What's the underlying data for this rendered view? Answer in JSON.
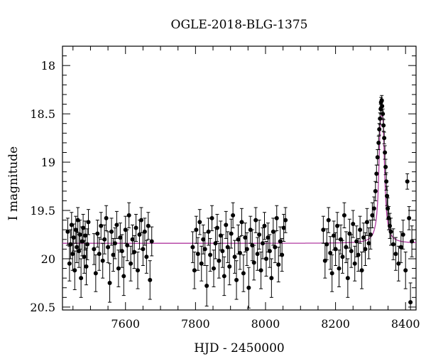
{
  "chart_data": {
    "type": "scatter",
    "title": "OGLE-2018-BLG-1375",
    "xlabel": "HJD - 2450000",
    "ylabel": "I magnitude",
    "xlim": [
      7420,
      8430
    ],
    "ylim": [
      20.53,
      17.8
    ],
    "y_inverted": true,
    "grid": false,
    "xticks": [
      {
        "value": 7600,
        "label": "7600"
      },
      {
        "value": 7800,
        "label": "7800"
      },
      {
        "value": 8000,
        "label": "8000"
      },
      {
        "value": 8200,
        "label": "8200"
      },
      {
        "value": 8400,
        "label": "8400"
      }
    ],
    "yticks": [
      {
        "value": 18,
        "label": "18"
      },
      {
        "value": 18.5,
        "label": "18.5"
      },
      {
        "value": 19,
        "label": "19"
      },
      {
        "value": 19.5,
        "label": "19.5"
      },
      {
        "value": 20,
        "label": "20"
      },
      {
        "value": 20.5,
        "label": "20.5"
      }
    ],
    "series": [
      {
        "kind": "data",
        "color": "#000000",
        "points": [
          [
            7435,
            19.72,
            0.14
          ],
          [
            7440,
            20.05,
            0.18
          ],
          [
            7443,
            19.85,
            0.15
          ],
          [
            7446,
            19.65,
            0.13
          ],
          [
            7449,
            19.95,
            0.17
          ],
          [
            7452,
            19.78,
            0.14
          ],
          [
            7455,
            20.12,
            0.2
          ],
          [
            7458,
            19.7,
            0.14
          ],
          [
            7461,
            19.88,
            0.16
          ],
          [
            7464,
            19.6,
            0.13
          ],
          [
            7467,
            19.92,
            0.17
          ],
          [
            7470,
            19.75,
            0.15
          ],
          [
            7473,
            20.2,
            0.2
          ],
          [
            7476,
            19.82,
            0.15
          ],
          [
            7479,
            19.68,
            0.14
          ],
          [
            7482,
            19.98,
            0.17
          ],
          [
            7485,
            19.76,
            0.15
          ],
          [
            7488,
            20.08,
            0.19
          ],
          [
            7491,
            19.85,
            0.16
          ],
          [
            7494,
            19.62,
            0.13
          ],
          [
            7510,
            19.9,
            0.16
          ],
          [
            7515,
            20.15,
            0.19
          ],
          [
            7520,
            19.74,
            0.14
          ],
          [
            7525,
            19.95,
            0.17
          ],
          [
            7530,
            19.66,
            0.14
          ],
          [
            7535,
            20.02,
            0.18
          ],
          [
            7540,
            19.8,
            0.15
          ],
          [
            7545,
            19.58,
            0.13
          ],
          [
            7550,
            19.88,
            0.16
          ],
          [
            7555,
            20.25,
            0.2
          ],
          [
            7560,
            19.72,
            0.14
          ],
          [
            7565,
            19.96,
            0.17
          ],
          [
            7570,
            19.84,
            0.16
          ],
          [
            7575,
            19.65,
            0.14
          ],
          [
            7580,
            20.1,
            0.19
          ],
          [
            7585,
            19.78,
            0.15
          ],
          [
            7590,
            19.92,
            0.17
          ],
          [
            7595,
            20.18,
            0.2
          ],
          [
            7600,
            19.7,
            0.14
          ],
          [
            7605,
            19.86,
            0.16
          ],
          [
            7610,
            19.55,
            0.13
          ],
          [
            7615,
            20.05,
            0.18
          ],
          [
            7620,
            19.8,
            0.15
          ],
          [
            7625,
            19.93,
            0.17
          ],
          [
            7630,
            19.68,
            0.14
          ],
          [
            7635,
            20.12,
            0.19
          ],
          [
            7640,
            19.75,
            0.15
          ],
          [
            7645,
            19.6,
            0.13
          ],
          [
            7650,
            19.9,
            0.17
          ],
          [
            7655,
            19.72,
            0.14
          ],
          [
            7660,
            19.98,
            0.17
          ],
          [
            7665,
            19.66,
            0.14
          ],
          [
            7670,
            20.22,
            0.2
          ],
          [
            7675,
            19.82,
            0.15
          ],
          [
            7792,
            19.88,
            0.16
          ],
          [
            7797,
            20.12,
            0.19
          ],
          [
            7802,
            19.7,
            0.14
          ],
          [
            7807,
            19.95,
            0.17
          ],
          [
            7812,
            19.62,
            0.13
          ],
          [
            7817,
            20.05,
            0.18
          ],
          [
            7822,
            19.8,
            0.15
          ],
          [
            7827,
            19.9,
            0.17
          ],
          [
            7832,
            20.28,
            0.21
          ],
          [
            7837,
            19.72,
            0.14
          ],
          [
            7842,
            19.96,
            0.17
          ],
          [
            7847,
            19.58,
            0.13
          ],
          [
            7852,
            20.1,
            0.19
          ],
          [
            7857,
            19.84,
            0.16
          ],
          [
            7862,
            19.68,
            0.14
          ],
          [
            7867,
            20.02,
            0.18
          ],
          [
            7872,
            19.76,
            0.15
          ],
          [
            7877,
            19.92,
            0.17
          ],
          [
            7882,
            20.18,
            0.2
          ],
          [
            7887,
            19.65,
            0.14
          ],
          [
            7892,
            19.88,
            0.16
          ],
          [
            7897,
            20.08,
            0.19
          ],
          [
            7902,
            19.74,
            0.15
          ],
          [
            7907,
            19.55,
            0.13
          ],
          [
            7912,
            19.98,
            0.17
          ],
          [
            7917,
            20.22,
            0.2
          ],
          [
            7922,
            19.8,
            0.15
          ],
          [
            7927,
            19.94,
            0.17
          ],
          [
            7932,
            19.62,
            0.14
          ],
          [
            7937,
            20.15,
            0.19
          ],
          [
            7942,
            19.78,
            0.15
          ],
          [
            7947,
            19.9,
            0.17
          ],
          [
            7952,
            20.3,
            0.21
          ],
          [
            7957,
            19.7,
            0.14
          ],
          [
            7962,
            19.86,
            0.16
          ],
          [
            7967,
            20.04,
            0.18
          ],
          [
            7972,
            19.6,
            0.13
          ],
          [
            7977,
            19.95,
            0.17
          ],
          [
            7982,
            19.75,
            0.15
          ],
          [
            7987,
            20.12,
            0.19
          ],
          [
            7992,
            19.84,
            0.16
          ],
          [
            7997,
            19.66,
            0.14
          ],
          [
            8002,
            20.0,
            0.18
          ],
          [
            8007,
            19.78,
            0.15
          ],
          [
            8012,
            19.92,
            0.17
          ],
          [
            8017,
            20.2,
            0.2
          ],
          [
            8022,
            19.72,
            0.14
          ],
          [
            8027,
            19.88,
            0.16
          ],
          [
            8032,
            19.58,
            0.13
          ],
          [
            8037,
            20.06,
            0.18
          ],
          [
            8042,
            19.82,
            0.15
          ],
          [
            8047,
            19.96,
            0.17
          ],
          [
            8052,
            19.68,
            0.14
          ],
          [
            8057,
            19.6,
            0.13
          ],
          [
            8165,
            19.7,
            0.14
          ],
          [
            8170,
            20.02,
            0.18
          ],
          [
            8175,
            19.85,
            0.16
          ],
          [
            8180,
            19.6,
            0.13
          ],
          [
            8185,
            19.94,
            0.17
          ],
          [
            8190,
            20.15,
            0.19
          ],
          [
            8195,
            19.76,
            0.15
          ],
          [
            8200,
            19.9,
            0.17
          ],
          [
            8205,
            19.66,
            0.14
          ],
          [
            8210,
            20.1,
            0.19
          ],
          [
            8215,
            19.8,
            0.15
          ],
          [
            8220,
            19.98,
            0.17
          ],
          [
            8225,
            19.55,
            0.13
          ],
          [
            8230,
            19.88,
            0.16
          ],
          [
            8235,
            20.2,
            0.2
          ],
          [
            8240,
            19.74,
            0.15
          ],
          [
            8245,
            19.92,
            0.17
          ],
          [
            8250,
            19.64,
            0.14
          ],
          [
            8255,
            20.05,
            0.18
          ],
          [
            8260,
            19.82,
            0.16
          ],
          [
            8265,
            19.96,
            0.17
          ],
          [
            8270,
            19.7,
            0.14
          ],
          [
            8275,
            20.12,
            0.19
          ],
          [
            8280,
            19.78,
            0.15
          ],
          [
            8285,
            19.9,
            0.17
          ],
          [
            8290,
            19.62,
            0.14
          ],
          [
            8295,
            19.84,
            0.16
          ],
          [
            8300,
            19.75,
            0.15
          ],
          [
            8305,
            19.55,
            0.13
          ],
          [
            8310,
            19.48,
            0.12
          ],
          [
            8314,
            19.3,
            0.1
          ],
          [
            8317,
            19.12,
            0.09
          ],
          [
            8320,
            18.95,
            0.08
          ],
          [
            8323,
            18.8,
            0.07
          ],
          [
            8325,
            18.66,
            0.06
          ],
          [
            8327,
            18.55,
            0.06
          ],
          [
            8329,
            18.45,
            0.05
          ],
          [
            8330,
            18.38,
            0.05
          ],
          [
            8332,
            18.36,
            0.05
          ],
          [
            8333,
            18.42,
            0.05
          ],
          [
            8335,
            18.5,
            0.05
          ],
          [
            8337,
            18.62,
            0.06
          ],
          [
            8339,
            18.75,
            0.06
          ],
          [
            8341,
            18.9,
            0.07
          ],
          [
            8343,
            19.05,
            0.08
          ],
          [
            8345,
            19.2,
            0.09
          ],
          [
            8347,
            19.35,
            0.1
          ],
          [
            8349,
            19.48,
            0.11
          ],
          [
            8352,
            19.58,
            0.12
          ],
          [
            8355,
            19.66,
            0.13
          ],
          [
            8358,
            19.72,
            0.14
          ],
          [
            8365,
            19.85,
            0.16
          ],
          [
            8372,
            19.95,
            0.17
          ],
          [
            8380,
            20.05,
            0.18
          ],
          [
            8387,
            19.88,
            0.16
          ],
          [
            8393,
            19.75,
            0.15
          ],
          [
            8400,
            20.12,
            0.19
          ],
          [
            8405,
            19.2,
            0.08
          ],
          [
            8410,
            19.58,
            0.12
          ],
          [
            8414,
            20.45,
            0.2
          ],
          [
            8418,
            19.82,
            0.16
          ]
        ]
      },
      {
        "kind": "model",
        "color": "#b03aa0",
        "baseline": 19.84,
        "t0": 8332,
        "peak": 18.52,
        "width": 12
      }
    ]
  }
}
